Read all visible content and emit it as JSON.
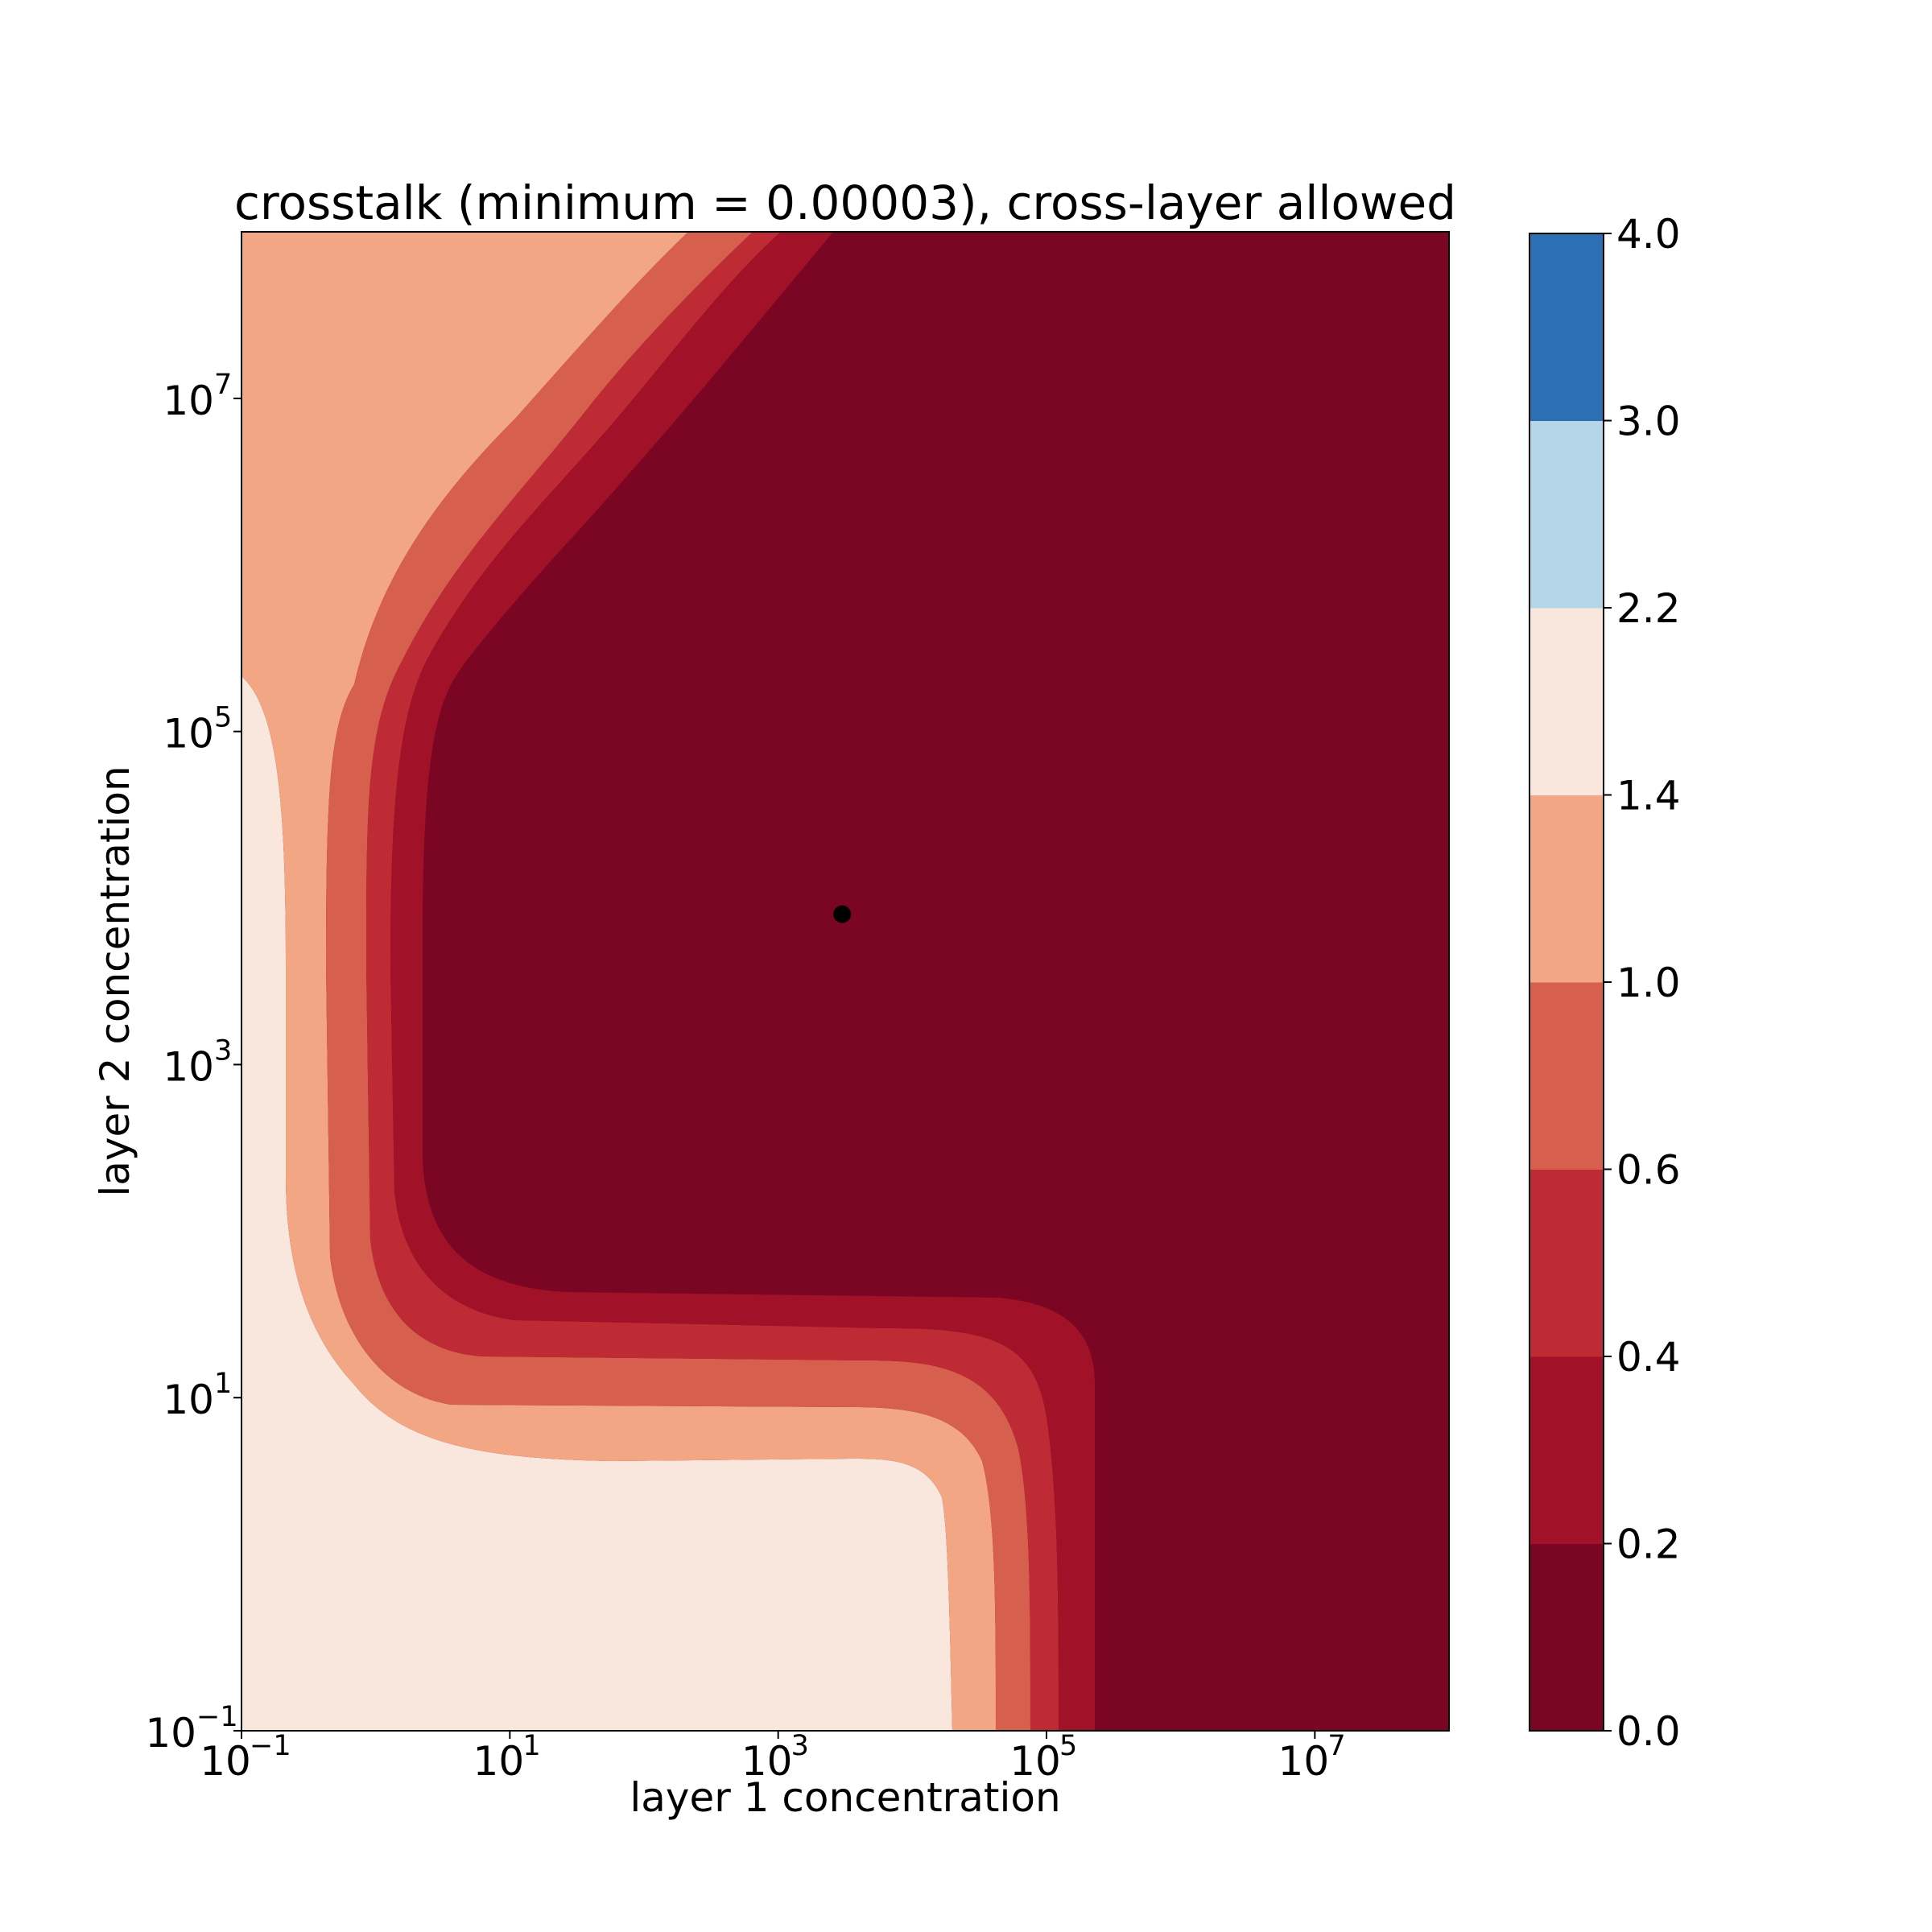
{
  "chart_data": {
    "type": "heatmap",
    "subtype": "filled-contour",
    "title": "crosstalk (minimum = 0.00003), cross-layer allowed",
    "xlabel": "layer 1 concentration",
    "ylabel": "layer 2 concentration",
    "x_scale": "log",
    "y_scale": "log",
    "xlim": [
      0.1,
      100000000
    ],
    "ylim": [
      0.1,
      100000000
    ],
    "x_ticks": [
      {
        "value": 0.1,
        "base": "10",
        "exp": "−1"
      },
      {
        "value": 10,
        "base": "10",
        "exp": "1"
      },
      {
        "value": 1000,
        "base": "10",
        "exp": "3"
      },
      {
        "value": 100000,
        "base": "10",
        "exp": "5"
      },
      {
        "value": 10000000,
        "base": "10",
        "exp": "7"
      }
    ],
    "y_ticks": [
      {
        "value": 0.1,
        "base": "10",
        "exp": "−1"
      },
      {
        "value": 10,
        "base": "10",
        "exp": "1"
      },
      {
        "value": 1000,
        "base": "10",
        "exp": "3"
      },
      {
        "value": 100000,
        "base": "10",
        "exp": "5"
      },
      {
        "value": 10000000,
        "base": "10",
        "exp": "7"
      }
    ],
    "colorbar": {
      "levels": [
        0.0,
        0.2,
        0.4,
        0.6,
        1.0,
        1.4,
        2.2,
        3.0,
        4.0
      ],
      "tick_labels": [
        "0.0",
        "0.2",
        "0.4",
        "0.6",
        "1.0",
        "1.4",
        "2.2",
        "3.0",
        "4.0"
      ],
      "colors": [
        "#7a0624",
        "#a11228",
        "#bf2b34",
        "#d75f4d",
        "#f2a683",
        "#f9e7de",
        "#b5d6e8",
        "#2c6fb2"
      ]
    },
    "contour_boundaries": [
      {
        "level": 1.4,
        "points": [
          [
            0.1,
            200000
          ],
          [
            0.2,
            50000
          ],
          [
            0.25,
            1000
          ],
          [
            0.27,
            100
          ],
          [
            0.4,
            20
          ],
          [
            2,
            6
          ],
          [
            20,
            4.2
          ],
          [
            1000,
            4
          ],
          [
            8000,
            3.7
          ],
          [
            20000,
            1.5
          ],
          [
            22000,
            0.4
          ],
          [
            22000,
            0.1
          ]
        ],
        "upper_branch": [
          [
            0.1,
            100000000
          ]
        ]
      },
      {
        "level": 1.0,
        "points": [
          [
            0.55,
            100000
          ],
          [
            0.4,
            5000
          ],
          [
            0.45,
            300
          ],
          [
            1.5,
            40
          ],
          [
            15,
            12
          ],
          [
            1000,
            10
          ],
          [
            20000,
            9
          ],
          [
            50000,
            1
          ],
          [
            50000,
            0.1
          ]
        ],
        "upper_branch": [
          [
            0.9,
            400000
          ],
          [
            4,
            5000000
          ],
          [
            400,
            100000000
          ]
        ]
      },
      {
        "level": 0.6,
        "points": [
          [
            0.8,
            100000
          ],
          [
            0.75,
            1000
          ],
          [
            2,
            60
          ],
          [
            30,
            22
          ],
          [
            10000,
            20
          ],
          [
            70000,
            8
          ],
          [
            100000,
            0.1
          ]
        ],
        "upper_branch": [
          [
            1.3,
            500000
          ],
          [
            10,
            5000000
          ],
          [
            900,
            100000000
          ]
        ]
      },
      {
        "level": 0.4,
        "points": [
          [
            1.8,
            100000
          ],
          [
            1.8,
            500
          ],
          [
            6,
            45
          ],
          [
            300,
            35
          ],
          [
            100000,
            20
          ],
          [
            150000,
            0.1
          ]
        ],
        "upper_branch": [
          [
            3,
            1000000
          ],
          [
            30,
            10000000
          ],
          [
            1700,
            100000000
          ]
        ]
      },
      {
        "level": 0.2,
        "points": [
          [
            2.5,
            100000
          ],
          [
            2.6,
            200
          ],
          [
            20,
            45
          ],
          [
            1000,
            40
          ],
          [
            100000,
            38
          ],
          [
            250000,
            10
          ],
          [
            250000,
            0.1
          ]
        ],
        "upper_branch": [
          [
            6,
            400000
          ],
          [
            60,
            5000000
          ],
          [
            3500,
            100000000
          ]
        ]
      }
    ],
    "marker": {
      "x": 3000,
      "y": 8000,
      "color": "#000000"
    },
    "grid": false
  }
}
